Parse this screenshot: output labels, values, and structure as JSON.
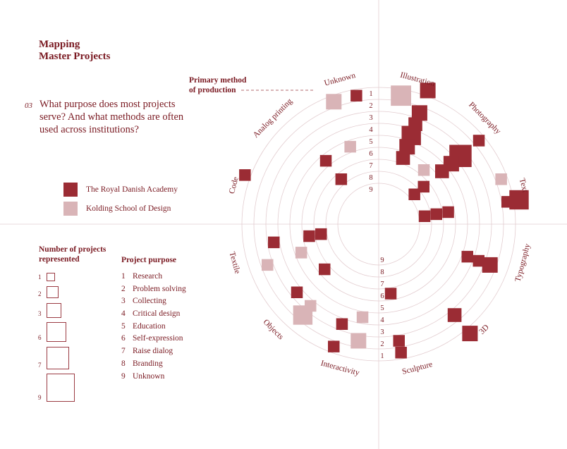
{
  "title": {
    "line1": "Mapping",
    "line2": "Master Projects"
  },
  "question": {
    "number": "03",
    "text": "What purpose does most projects serve? And what methods are often used across institutions?"
  },
  "legend": [
    {
      "label": "The Royal Danish Academy",
      "color": "#9b2c34"
    },
    {
      "label": "Kolding School of Design",
      "color": "#d9b4b7"
    }
  ],
  "size_legend": {
    "heading_line1": "Number of projects",
    "heading_line2": "represented",
    "items": [
      "1",
      "2",
      "3",
      "6",
      "7",
      "9"
    ]
  },
  "purpose_legend": {
    "heading": "Project purpose",
    "items": [
      {
        "n": "1",
        "label": "Research"
      },
      {
        "n": "2",
        "label": "Problem solving"
      },
      {
        "n": "3",
        "label": "Collecting"
      },
      {
        "n": "4",
        "label": "Critical design"
      },
      {
        "n": "5",
        "label": "Education"
      },
      {
        "n": "6",
        "label": "Self-expression"
      },
      {
        "n": "7",
        "label": "Raise dialog"
      },
      {
        "n": "8",
        "label": "Branding"
      },
      {
        "n": "9",
        "label": "Unknown"
      }
    ]
  },
  "axis_callout": {
    "line1": "Primary method",
    "line2": "of production"
  },
  "chart_data": {
    "type": "scatter",
    "title": "Mapping Master Projects",
    "layout": "polar grid: angular sectors = primary method of production, rings = project purpose (1 outer to 9 inner), square area = number of projects",
    "methods": [
      "Unknown",
      "Illustration",
      "Photography",
      "Text",
      "Typography",
      "3D",
      "Sculpture",
      "Interactivity",
      "Objects",
      "Textile",
      "Code",
      "Analog printing"
    ],
    "ring_labels_top": [
      "1",
      "2",
      "3",
      "4",
      "5",
      "6",
      "7",
      "8",
      "9"
    ],
    "ring_labels_bottom": [
      "9",
      "8",
      "7",
      "6",
      "5",
      "4",
      "3",
      "2",
      "1"
    ],
    "series": [
      {
        "name": "The Royal Danish Academy",
        "color": "#9b2c34",
        "points": [
          {
            "method": "Illustration",
            "purpose": 1,
            "count": 3
          },
          {
            "method": "Illustration",
            "purpose": 3,
            "count": 3
          },
          {
            "method": "Unknown",
            "purpose": 2,
            "count": 1
          },
          {
            "method": "Illustration",
            "purpose": 4,
            "count": 2
          },
          {
            "method": "Illustration",
            "purpose": 5,
            "count": 6
          },
          {
            "method": "Illustration",
            "purpose": 6,
            "count": 3
          },
          {
            "method": "Illustration",
            "purpose": 7,
            "count": 2
          },
          {
            "method": "Photography",
            "purpose": 2,
            "count": 1
          },
          {
            "method": "Photography",
            "purpose": 4,
            "count": 9
          },
          {
            "method": "Photography",
            "purpose": 5,
            "count": 3
          },
          {
            "method": "Photography",
            "purpose": 6,
            "count": 2
          },
          {
            "method": "Photography",
            "purpose": 8,
            "count": 1
          },
          {
            "method": "Photography",
            "purpose": 9,
            "count": 1
          },
          {
            "method": "Text",
            "purpose": 1,
            "count": 6
          },
          {
            "method": "Text",
            "purpose": 2,
            "count": 1
          },
          {
            "method": "Text",
            "purpose": 8,
            "count": 1
          },
          {
            "method": "Text",
            "purpose": 9,
            "count": 1
          },
          {
            "method": "Text",
            "purpose": 7,
            "count": 1
          },
          {
            "method": "Typography",
            "purpose": 3,
            "count": 3
          },
          {
            "method": "Typography",
            "purpose": 5,
            "count": 1
          },
          {
            "method": "Typography",
            "purpose": 4,
            "count": 1
          },
          {
            "method": "3D",
            "purpose": 3,
            "count": 2
          },
          {
            "method": "3D",
            "purpose": 1,
            "count": 3
          },
          {
            "method": "Sculpture",
            "purpose": 2,
            "count": 1
          },
          {
            "method": "Sculpture",
            "purpose": 3,
            "count": 1
          },
          {
            "method": "Sculpture",
            "purpose": 7,
            "count": 1
          },
          {
            "method": "Interactivity",
            "purpose": 2,
            "count": 1
          },
          {
            "method": "Interactivity",
            "purpose": 4,
            "count": 1
          },
          {
            "method": "Objects",
            "purpose": 4,
            "count": 1
          },
          {
            "method": "Objects",
            "purpose": 7,
            "count": 1
          },
          {
            "method": "Textile",
            "purpose": 4,
            "count": 1
          },
          {
            "method": "Textile",
            "purpose": 7,
            "count": 1
          },
          {
            "method": "Textile",
            "purpose": 8,
            "count": 1
          },
          {
            "method": "Code",
            "purpose": 1,
            "count": 1
          },
          {
            "method": "Analog printing",
            "purpose": 6,
            "count": 1
          },
          {
            "method": "Analog printing",
            "purpose": 8,
            "count": 1
          }
        ]
      },
      {
        "name": "Kolding School of Design",
        "color": "#d9b4b7",
        "points": [
          {
            "method": "Illustration",
            "purpose": 2,
            "count": 7
          },
          {
            "method": "Unknown",
            "purpose": 2,
            "count": 3
          },
          {
            "method": "Unknown",
            "purpose": 6,
            "count": 1
          },
          {
            "method": "Photography",
            "purpose": 7,
            "count": 1
          },
          {
            "method": "Text",
            "purpose": 2,
            "count": 1
          },
          {
            "method": "Interactivity",
            "purpose": 3,
            "count": 3
          },
          {
            "method": "Interactivity",
            "purpose": 5,
            "count": 1
          },
          {
            "method": "Objects",
            "purpose": 3,
            "count": 6
          },
          {
            "method": "Objects",
            "purpose": 4,
            "count": 1
          },
          {
            "method": "Textile",
            "purpose": 6,
            "count": 1
          },
          {
            "method": "Textile",
            "purpose": 3,
            "count": 1
          }
        ]
      }
    ]
  }
}
